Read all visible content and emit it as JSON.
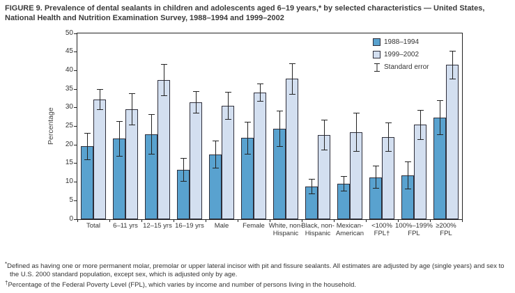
{
  "figure": {
    "title": "FIGURE 9. Prevalence of dental sealants in children and adolescents aged 6–19 years,* by selected characteristics — United States, National Health and Nutrition Examination Survey, 1988–1994 and 1999–2002",
    "footnotes": [
      {
        "marker": "*",
        "text": "Defined as having one or more permanent molar, premolar or upper lateral incisor with pit and fissure sealants.  All estimates are adjusted by age (single years) and sex to the U.S. 2000 standard population, except sex, which is adjusted only by age."
      },
      {
        "marker": "†",
        "text": "Percentage of the Federal Poverty Level (FPL), which varies by income and number of persons living in the household."
      }
    ]
  },
  "chart_data": {
    "type": "bar",
    "title": "Prevalence of dental sealants in children and adolescents aged 6–19 years, by selected characteristics",
    "xlabel": "",
    "ylabel": "Percentage",
    "ylim": [
      0,
      50
    ],
    "ytick_step": 5,
    "grid": false,
    "legend_position": "top-right-inside",
    "legend_note": "Standard error",
    "categories": [
      "Total",
      "6–11 yrs",
      "12–15 yrs",
      "16–19 yrs",
      "Male",
      "Female",
      "White, non-Hispanic",
      "Black, non-Hispanic",
      "Mexican-American",
      "<100% FPL†",
      "100%–199% FPL",
      "≥200% FPL"
    ],
    "category_lines": [
      [
        "Total"
      ],
      [
        "6–11 yrs"
      ],
      [
        "12–15 yrs"
      ],
      [
        "16–19 yrs"
      ],
      [
        "Male"
      ],
      [
        "Female"
      ],
      [
        "White, non-",
        "Hispanic"
      ],
      [
        "Black, non-",
        "Hispanic"
      ],
      [
        "Mexican-",
        "American"
      ],
      [
        "<100%",
        "FPL†"
      ],
      [
        "100%–199%",
        "FPL"
      ],
      [
        "≥200%",
        "FPL"
      ]
    ],
    "series": [
      {
        "name": "1988–1994",
        "color": "#59a2cf",
        "values": [
          19.6,
          21.7,
          22.8,
          13.3,
          17.4,
          21.9,
          24.3,
          8.8,
          9.6,
          11.3,
          11.8,
          27.3
        ],
        "standard_error": [
          3.6,
          4.7,
          5.3,
          3.1,
          3.7,
          4.3,
          4.8,
          1.9,
          2.0,
          3.0,
          3.7,
          4.6
        ]
      },
      {
        "name": "1999–2002",
        "color": "#d3dff0",
        "values": [
          32.2,
          29.6,
          37.4,
          31.4,
          30.5,
          34.1,
          37.8,
          22.6,
          23.4,
          22.1,
          25.4,
          41.5
        ],
        "standard_error": [
          2.7,
          4.2,
          4.2,
          2.9,
          3.6,
          2.4,
          4.1,
          4.0,
          5.2,
          3.9,
          3.9,
          3.8
        ]
      }
    ],
    "colors": {
      "axis": "#222222",
      "bar_border": "#2e2e3a",
      "error_bar": "#222222"
    }
  }
}
